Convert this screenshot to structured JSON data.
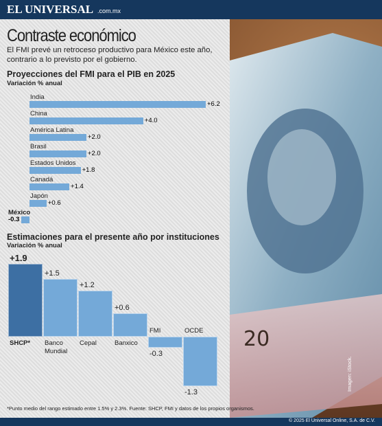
{
  "header": {
    "brand": "EL UNIVERSAL",
    "brand_suffix": ".com.mx",
    "title": "Contraste económico",
    "subtitle": "El FMI prevé un retroceso productivo para México este año, contrario a lo previsto por el gobierno."
  },
  "chart_data": [
    {
      "type": "bar",
      "orientation": "horizontal",
      "title": "Proyecciones del FMI para el PIB en 2025",
      "subtitle": "Variación % anual",
      "categories": [
        "India",
        "China",
        "América Latina",
        "Brasil",
        "Estados Unidos",
        "Canadá",
        "Japón",
        "México"
      ],
      "values": [
        6.2,
        4.0,
        2.0,
        2.0,
        1.8,
        1.4,
        0.6,
        -0.3
      ],
      "value_labels": [
        "+6.2",
        "+4.0",
        "+2.0",
        "+2.0",
        "+1.8",
        "+1.4",
        "+0.6",
        "-0.3"
      ],
      "color": "#74a9d8"
    },
    {
      "type": "bar",
      "orientation": "vertical",
      "title": "Estimaciones para el presente año por instituciones",
      "subtitle": "Variación % anual",
      "categories": [
        "SHCP*",
        "Banco Mundial",
        "Cepal",
        "Banxico",
        "FMI",
        "OCDE"
      ],
      "values": [
        1.9,
        1.5,
        1.2,
        0.6,
        -0.3,
        -1.3
      ],
      "value_labels": [
        "+1.9",
        "+1.5",
        "+1.2",
        "+0.6",
        "-0.3",
        "-1.3"
      ],
      "colors": [
        "#3d6fa3",
        "#74a9d8",
        "#74a9d8",
        "#74a9d8",
        "#74a9d8",
        "#74a9d8"
      ]
    }
  ],
  "footnote": "*Punto medio del rango estimado entre 1.5% y 2.3%. Fuente: SHCP, FMI y datos de los propios organismos.",
  "copyright": "© 2025 El Universal Online, S.A. de C.V.",
  "image_credit": "Imagen: iStock."
}
